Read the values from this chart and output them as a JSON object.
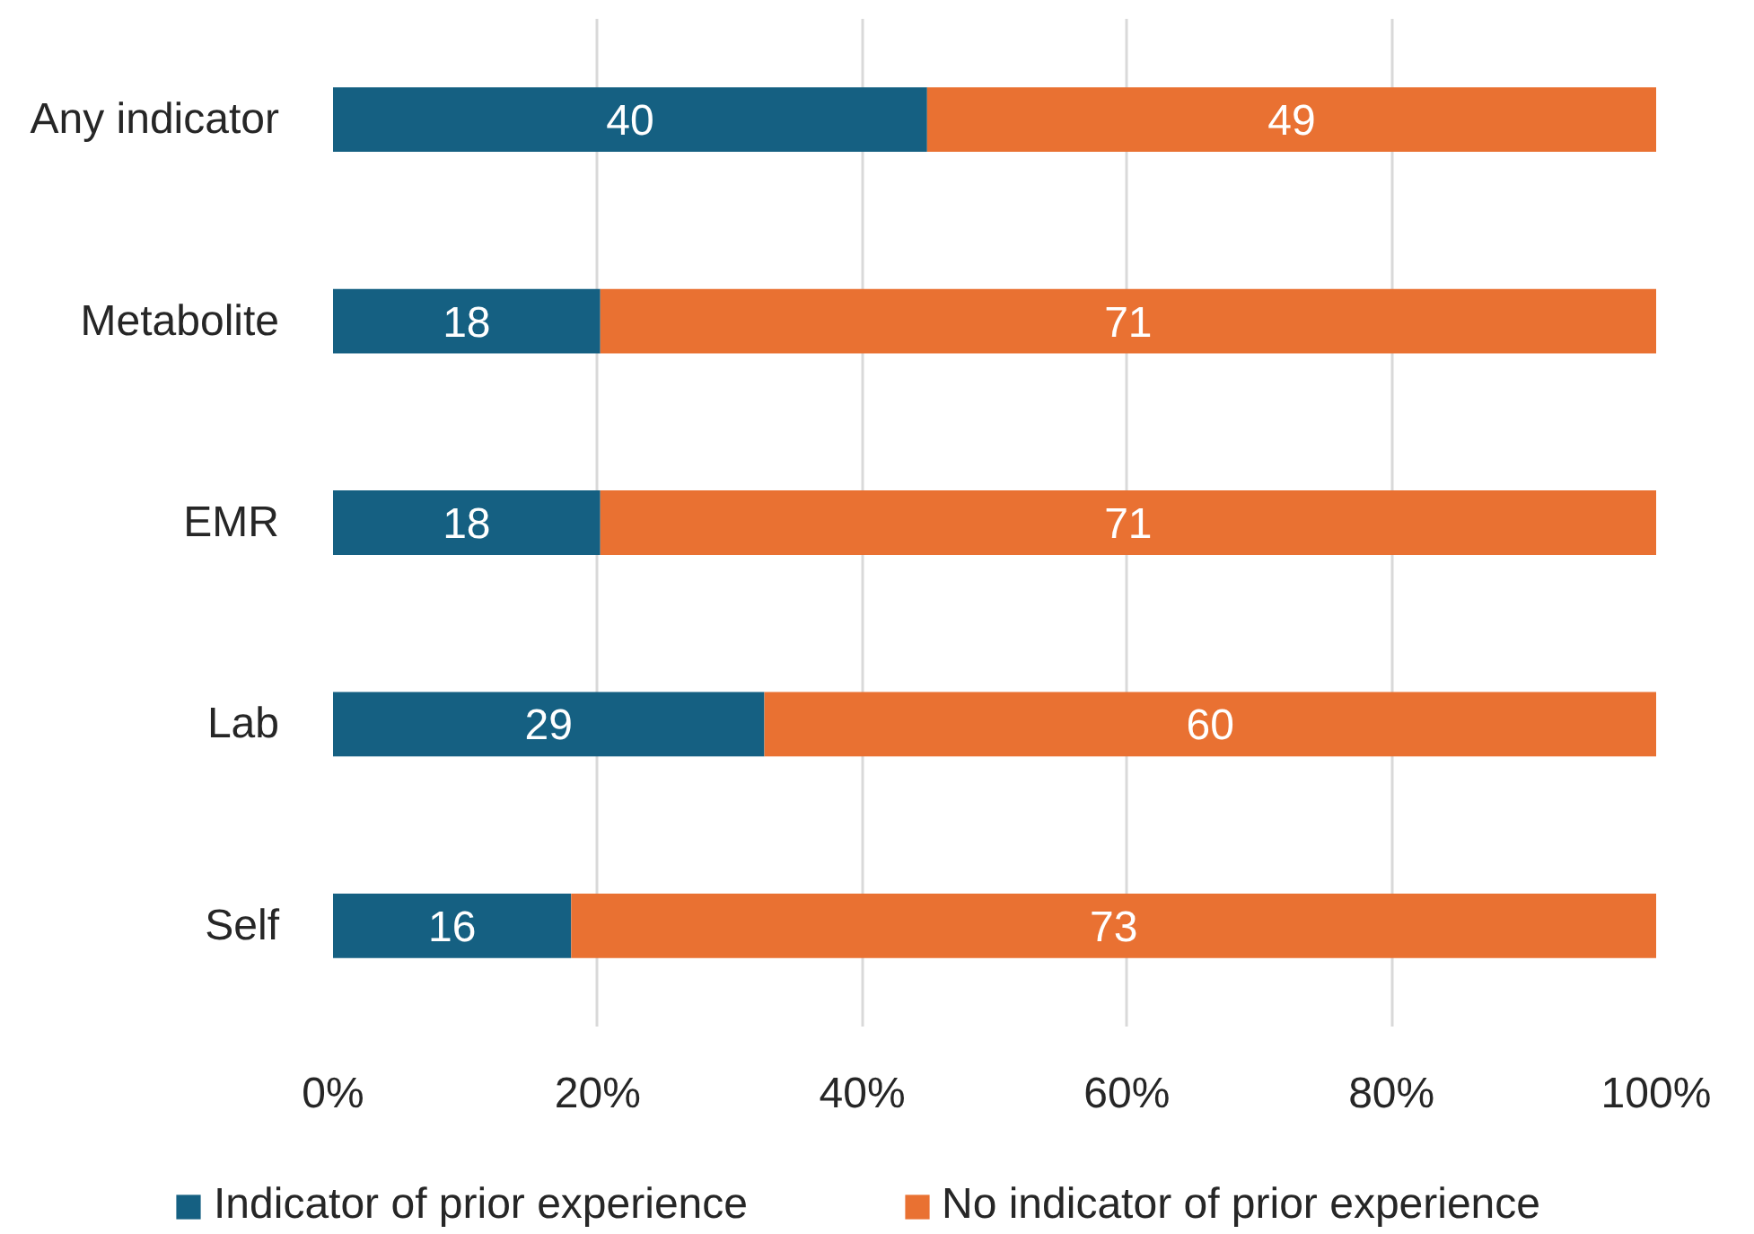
{
  "chart_data": {
    "type": "bar",
    "orientation": "horizontal",
    "stacked": true,
    "categories": [
      "Any indicator",
      "Metabolite",
      "EMR",
      "Lab",
      "Self"
    ],
    "series": [
      {
        "name": "Indicator of prior experience",
        "color": "#156082",
        "values": [
          44.9,
          20.2,
          20.2,
          32.6,
          18.0
        ]
      },
      {
        "name": "No indicator of prior experience",
        "color": "#e97132",
        "values": [
          55.1,
          79.8,
          79.8,
          67.4,
          82.0
        ]
      }
    ],
    "annotations": [
      "40",
      "49",
      "18",
      "71",
      "18",
      "71",
      "29",
      "60",
      "16",
      "73"
    ],
    "xlim": [
      0,
      100
    ],
    "xticks": [
      {
        "value": 0,
        "label": "0%"
      },
      {
        "value": 20,
        "label": "20%"
      },
      {
        "value": 40,
        "label": "40%"
      },
      {
        "value": 60,
        "label": "60%"
      },
      {
        "value": 80,
        "label": "80%"
      },
      {
        "value": 100,
        "label": "100%"
      }
    ],
    "grid": "x",
    "legend": "bottom"
  }
}
